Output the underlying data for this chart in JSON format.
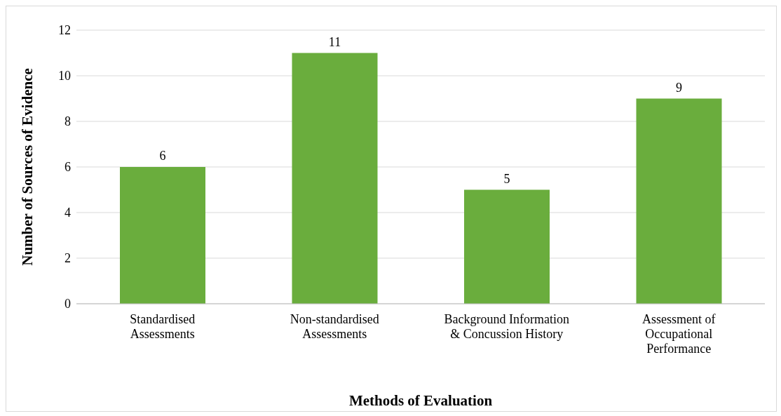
{
  "chart_data": {
    "type": "bar",
    "xlabel": "Methods of Evaluation",
    "ylabel": "Number of Sources of Evidence",
    "categories": [
      "Standardised Assessments",
      "Non-standardised Assessments",
      "Background Information & Concussion History",
      "Assessment of Occupational Performance"
    ],
    "values": [
      6,
      11,
      5,
      9
    ],
    "color": "#6aad3d",
    "ylim": [
      0,
      12
    ],
    "yticks": [
      0,
      2,
      4,
      6,
      8,
      10,
      12
    ],
    "grid": "y",
    "data_labels": true
  }
}
